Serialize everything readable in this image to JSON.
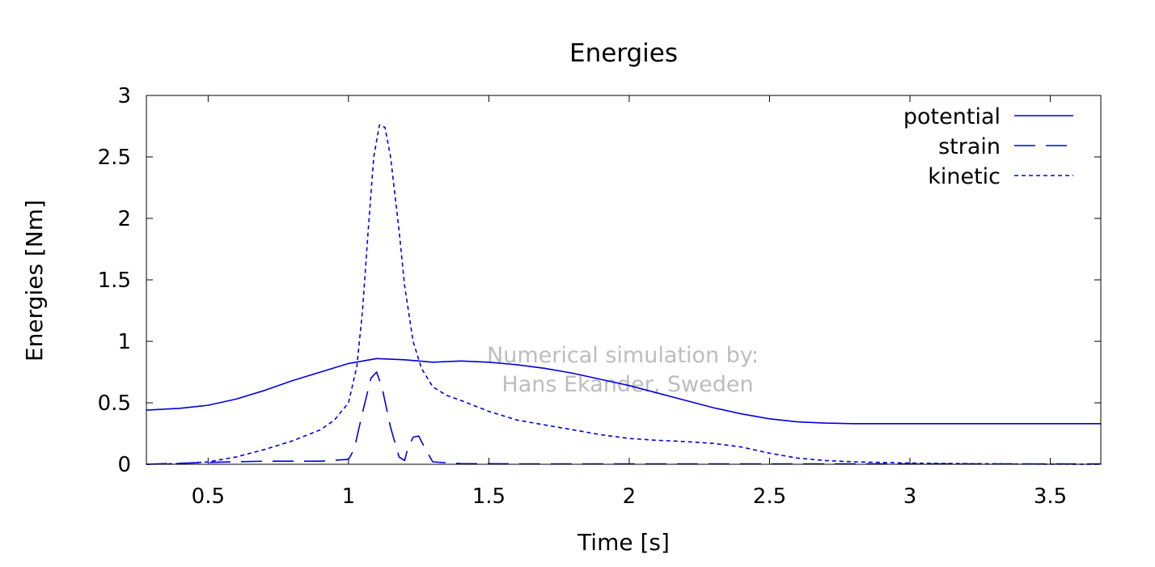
{
  "chart_data": {
    "type": "line",
    "title": "Energies",
    "xlabel": "Time [s]",
    "ylabel": "Energies [Nm]",
    "xlim": [
      0.28,
      3.68
    ],
    "ylim": [
      0,
      3
    ],
    "xticks": [
      0.5,
      1,
      1.5,
      2,
      2.5,
      3,
      3.5
    ],
    "xtick_labels": [
      "0.5",
      "1",
      "1.5",
      "2",
      "2.5",
      "3",
      "3.5"
    ],
    "yticks": [
      0,
      0.5,
      1,
      1.5,
      2,
      2.5,
      3
    ],
    "ytick_labels": [
      "0",
      "0.5",
      "1",
      "1.5",
      "2",
      "2.5",
      "3"
    ],
    "grid": false,
    "legend_position": "top-right",
    "series_color": "#0000dd",
    "series": [
      {
        "name": "potential",
        "style": "solid",
        "x": [
          0.28,
          0.4,
          0.5,
          0.6,
          0.7,
          0.8,
          0.9,
          1.0,
          1.1,
          1.2,
          1.3,
          1.4,
          1.5,
          1.6,
          1.7,
          1.8,
          1.9,
          2.0,
          2.1,
          2.2,
          2.3,
          2.4,
          2.5,
          2.6,
          2.7,
          2.8,
          3.0,
          3.2,
          3.4,
          3.68
        ],
        "values": [
          0.44,
          0.455,
          0.48,
          0.53,
          0.6,
          0.68,
          0.75,
          0.82,
          0.86,
          0.85,
          0.83,
          0.84,
          0.83,
          0.81,
          0.78,
          0.74,
          0.69,
          0.64,
          0.58,
          0.52,
          0.46,
          0.41,
          0.37,
          0.345,
          0.335,
          0.33,
          0.33,
          0.33,
          0.33,
          0.33
        ]
      },
      {
        "name": "strain",
        "style": "dashed",
        "x": [
          0.28,
          0.5,
          0.7,
          0.9,
          1.0,
          1.02,
          1.05,
          1.08,
          1.1,
          1.12,
          1.15,
          1.18,
          1.2,
          1.21,
          1.23,
          1.25,
          1.27,
          1.3,
          1.4,
          1.6,
          2.0,
          2.5,
          3.0,
          3.68
        ],
        "values": [
          0.0,
          0.015,
          0.025,
          0.025,
          0.04,
          0.12,
          0.42,
          0.7,
          0.75,
          0.62,
          0.3,
          0.06,
          0.03,
          0.12,
          0.22,
          0.23,
          0.14,
          0.02,
          0.005,
          0.003,
          0.003,
          0.003,
          0.003,
          0.003
        ]
      },
      {
        "name": "kinetic",
        "style": "dotted",
        "x": [
          0.28,
          0.4,
          0.5,
          0.6,
          0.7,
          0.8,
          0.9,
          0.95,
          1.0,
          1.03,
          1.05,
          1.07,
          1.09,
          1.11,
          1.13,
          1.15,
          1.18,
          1.2,
          1.23,
          1.26,
          1.3,
          1.35,
          1.4,
          1.5,
          1.6,
          1.7,
          1.8,
          1.9,
          2.0,
          2.1,
          2.2,
          2.3,
          2.4,
          2.5,
          2.6,
          2.7,
          2.8,
          3.0,
          3.2,
          3.4,
          3.68
        ],
        "values": [
          0.0,
          0.005,
          0.02,
          0.06,
          0.12,
          0.19,
          0.28,
          0.36,
          0.5,
          0.8,
          1.25,
          1.9,
          2.5,
          2.76,
          2.74,
          2.5,
          1.9,
          1.45,
          1.0,
          0.78,
          0.63,
          0.56,
          0.52,
          0.43,
          0.36,
          0.32,
          0.28,
          0.24,
          0.21,
          0.195,
          0.185,
          0.17,
          0.14,
          0.09,
          0.05,
          0.03,
          0.02,
          0.01,
          0.005,
          0.002,
          0.0
        ]
      }
    ],
    "annotation": [
      "Numerical simulation by:",
      "Hans Ekander, Sweden"
    ]
  }
}
